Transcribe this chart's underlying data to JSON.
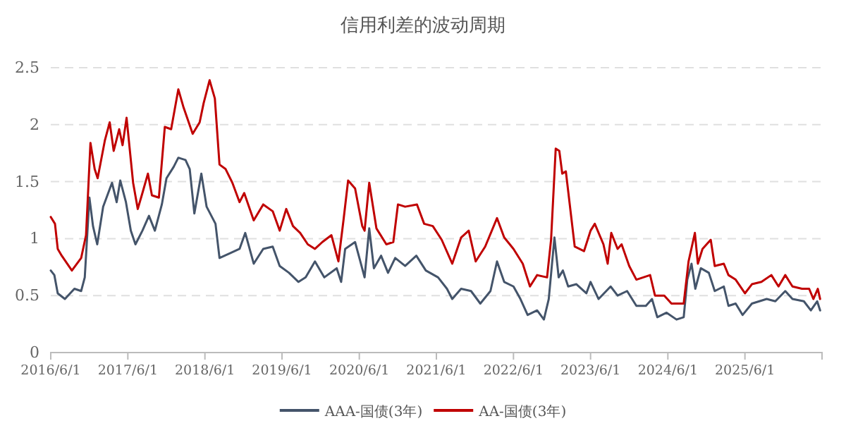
{
  "chart_data": {
    "type": "line",
    "title": "信用利差的波动周期",
    "xlim": [
      "2016-06-01",
      "2026-06-01"
    ],
    "xticks": [
      {
        "value": "2016-06-01",
        "label": "2016/6/1"
      },
      {
        "value": "2017-06-01",
        "label": "2017/6/1"
      },
      {
        "value": "2018-06-01",
        "label": "2018/6/1"
      },
      {
        "value": "2019-06-01",
        "label": "2019/6/1"
      },
      {
        "value": "2020-06-01",
        "label": "2020/6/1"
      },
      {
        "value": "2021-06-01",
        "label": "2021/6/1"
      },
      {
        "value": "2022-06-01",
        "label": "2022/6/1"
      },
      {
        "value": "2023-06-01",
        "label": "2023/6/1"
      },
      {
        "value": "2024-06-01",
        "label": "2024/6/1"
      },
      {
        "value": "2025-06-01",
        "label": "2025/6/1"
      }
    ],
    "ylim": [
      0,
      2.5
    ],
    "yticks": [
      0,
      0.5,
      1,
      1.5,
      2,
      2.5
    ],
    "grid": "y",
    "legend": "bottom",
    "line_style": "solid",
    "marker": "none",
    "series": [
      {
        "name": "AAA-国债(3年)",
        "color": "#44546a",
        "x": [
          "2016-06-01",
          "2016-06-18",
          "2016-07-04",
          "2016-08-07",
          "2016-09-21",
          "2016-10-23",
          "2016-11-09",
          "2016-12-01",
          "2016-12-18",
          "2017-01-07",
          "2017-02-04",
          "2017-03-18",
          "2017-04-09",
          "2017-04-26",
          "2017-05-23",
          "2017-06-15",
          "2017-07-07",
          "2017-08-09",
          "2017-09-09",
          "2017-10-07",
          "2017-11-09",
          "2017-12-01",
          "2018-01-04",
          "2018-01-26",
          "2018-03-01",
          "2018-03-21",
          "2018-04-12",
          "2018-05-15",
          "2018-06-09",
          "2018-07-21",
          "2018-08-09",
          "2018-09-26",
          "2018-11-12",
          "2018-12-09",
          "2019-01-18",
          "2019-03-04",
          "2019-04-18",
          "2019-05-21",
          "2019-07-04",
          "2019-08-18",
          "2019-09-21",
          "2019-11-04",
          "2019-12-18",
          "2020-02-15",
          "2020-03-07",
          "2020-03-26",
          "2020-05-12",
          "2020-06-26",
          "2020-07-18",
          "2020-08-09",
          "2020-09-12",
          "2020-10-15",
          "2020-11-18",
          "2021-01-04",
          "2021-02-26",
          "2021-04-12",
          "2021-06-09",
          "2021-07-21",
          "2021-08-15",
          "2021-09-26",
          "2021-11-12",
          "2021-12-26",
          "2022-02-12",
          "2022-03-15",
          "2022-04-18",
          "2022-06-01",
          "2022-07-04",
          "2022-08-07",
          "2022-09-21",
          "2022-10-23",
          "2022-11-15",
          "2022-12-12",
          "2023-01-01",
          "2023-01-21",
          "2023-02-15",
          "2023-03-26",
          "2023-05-12",
          "2023-06-01",
          "2023-07-09",
          "2023-09-04",
          "2023-10-07",
          "2023-11-21",
          "2024-01-04",
          "2024-02-18",
          "2024-03-18",
          "2024-04-12",
          "2024-05-26",
          "2024-07-12",
          "2024-08-15",
          "2024-09-01",
          "2024-09-21",
          "2024-10-09",
          "2024-11-04",
          "2024-12-12",
          "2025-01-09",
          "2025-02-21",
          "2025-03-15",
          "2025-04-18",
          "2025-05-21",
          "2025-07-04",
          "2025-09-12",
          "2025-10-23",
          "2025-12-09",
          "2026-01-12",
          "2026-03-07",
          "2026-04-09",
          "2026-05-09",
          "2026-05-23"
        ],
        "values": [
          0.72,
          0.68,
          0.52,
          0.47,
          0.56,
          0.54,
          0.66,
          1.36,
          1.11,
          0.95,
          1.28,
          1.49,
          1.32,
          1.51,
          1.32,
          1.07,
          0.95,
          1.07,
          1.2,
          1.07,
          1.3,
          1.53,
          1.63,
          1.71,
          1.69,
          1.61,
          1.22,
          1.57,
          1.28,
          1.13,
          0.83,
          0.87,
          0.91,
          1.05,
          0.78,
          0.91,
          0.93,
          0.76,
          0.7,
          0.62,
          0.66,
          0.8,
          0.66,
          0.74,
          0.62,
          0.91,
          0.97,
          0.66,
          1.09,
          0.74,
          0.85,
          0.7,
          0.83,
          0.76,
          0.85,
          0.72,
          0.66,
          0.56,
          0.47,
          0.56,
          0.54,
          0.43,
          0.54,
          0.8,
          0.62,
          0.58,
          0.47,
          0.33,
          0.37,
          0.29,
          0.47,
          1.01,
          0.66,
          0.72,
          0.58,
          0.6,
          0.52,
          0.62,
          0.47,
          0.58,
          0.5,
          0.54,
          0.41,
          0.41,
          0.47,
          0.31,
          0.35,
          0.29,
          0.31,
          0.64,
          0.78,
          0.56,
          0.74,
          0.7,
          0.54,
          0.58,
          0.41,
          0.43,
          0.33,
          0.43,
          0.47,
          0.45,
          0.54,
          0.47,
          0.45,
          0.37,
          0.45,
          0.37
        ]
      },
      {
        "name": "AA-国债(3年)",
        "color": "#c00000",
        "x": [
          "2016-06-01",
          "2016-06-21",
          "2016-07-04",
          "2016-07-23",
          "2016-09-09",
          "2016-10-23",
          "2016-11-15",
          "2016-12-06",
          "2016-12-26",
          "2017-01-09",
          "2017-02-12",
          "2017-03-07",
          "2017-03-26",
          "2017-04-21",
          "2017-05-07",
          "2017-05-26",
          "2017-06-26",
          "2017-07-18",
          "2017-08-09",
          "2017-09-04",
          "2017-09-23",
          "2017-10-26",
          "2017-11-23",
          "2017-12-23",
          "2018-01-26",
          "2018-02-20",
          "2018-04-04",
          "2018-05-07",
          "2018-05-26",
          "2018-06-23",
          "2018-07-18",
          "2018-08-09",
          "2018-09-07",
          "2018-10-09",
          "2018-11-12",
          "2018-12-04",
          "2019-01-18",
          "2019-03-04",
          "2019-04-18",
          "2019-05-21",
          "2019-06-21",
          "2019-07-23",
          "2019-08-26",
          "2019-10-01",
          "2019-11-04",
          "2019-12-09",
          "2020-01-21",
          "2020-02-23",
          "2020-03-18",
          "2020-04-09",
          "2020-05-12",
          "2020-06-15",
          "2020-06-26",
          "2020-07-18",
          "2020-08-21",
          "2020-10-07",
          "2020-11-09",
          "2020-12-01",
          "2021-01-04",
          "2021-03-01",
          "2021-04-04",
          "2021-05-15",
          "2021-06-26",
          "2021-08-15",
          "2021-09-26",
          "2021-11-01",
          "2021-12-04",
          "2022-01-18",
          "2022-03-15",
          "2022-04-18",
          "2022-06-01",
          "2022-07-15",
          "2022-08-18",
          "2022-09-21",
          "2022-11-07",
          "2022-11-26",
          "2022-12-18",
          "2023-01-04",
          "2023-01-18",
          "2023-02-04",
          "2023-03-18",
          "2023-05-01",
          "2023-06-01",
          "2023-06-21",
          "2023-08-01",
          "2023-08-21",
          "2023-09-07",
          "2023-10-07",
          "2023-10-26",
          "2023-12-01",
          "2024-01-04",
          "2024-03-09",
          "2024-04-01",
          "2024-05-15",
          "2024-06-18",
          "2024-08-15",
          "2024-09-07",
          "2024-10-07",
          "2024-10-21",
          "2024-11-12",
          "2024-12-21",
          "2025-01-09",
          "2025-02-21",
          "2025-03-15",
          "2025-04-18",
          "2025-06-01",
          "2025-07-04",
          "2025-08-18",
          "2025-10-04",
          "2025-11-07",
          "2025-12-09",
          "2026-01-12",
          "2026-02-26",
          "2026-04-01",
          "2026-04-21",
          "2026-05-12",
          "2026-05-23"
        ],
        "values": [
          1.19,
          1.13,
          0.91,
          0.85,
          0.72,
          0.83,
          1.03,
          1.84,
          1.61,
          1.53,
          1.86,
          2.02,
          1.77,
          1.96,
          1.82,
          2.06,
          1.49,
          1.26,
          1.4,
          1.57,
          1.38,
          1.36,
          1.98,
          1.96,
          2.31,
          2.15,
          1.92,
          2.02,
          2.19,
          2.39,
          2.23,
          1.65,
          1.61,
          1.49,
          1.32,
          1.4,
          1.16,
          1.3,
          1.24,
          1.07,
          1.26,
          1.11,
          1.05,
          0.95,
          0.91,
          0.97,
          1.03,
          0.8,
          1.16,
          1.51,
          1.44,
          1.11,
          1.07,
          1.49,
          1.09,
          0.95,
          0.97,
          1.3,
          1.28,
          1.3,
          1.13,
          1.11,
          0.99,
          0.78,
          1.01,
          1.07,
          0.8,
          0.93,
          1.18,
          1.01,
          0.91,
          0.78,
          0.58,
          0.68,
          0.66,
          0.99,
          1.79,
          1.77,
          1.57,
          1.59,
          0.93,
          0.89,
          1.07,
          1.13,
          0.95,
          0.78,
          1.05,
          0.91,
          0.95,
          0.76,
          0.64,
          0.68,
          0.5,
          0.5,
          0.43,
          0.43,
          0.8,
          1.05,
          0.78,
          0.91,
          0.99,
          0.76,
          0.78,
          0.68,
          0.64,
          0.52,
          0.6,
          0.62,
          0.68,
          0.58,
          0.68,
          0.58,
          0.56,
          0.56,
          0.47,
          0.56,
          0.47
        ]
      }
    ]
  }
}
